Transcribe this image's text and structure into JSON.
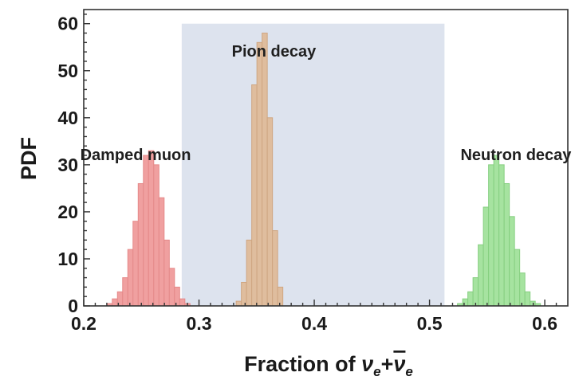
{
  "chart_data": {
    "type": "bar",
    "xlabel": "Fraction of νe+ν̄e",
    "xlabel_parts": {
      "lead": "Fraction of ",
      "nu1": "ν",
      "sub1": "e",
      "plus": "+",
      "nu2": "ν",
      "sub2": "e"
    },
    "ylabel": "PDF",
    "xlim": [
      0.2,
      0.62
    ],
    "ylim": [
      0,
      63
    ],
    "xticks": [
      0.2,
      0.3,
      0.4,
      0.5,
      0.6
    ],
    "xtick_labels": [
      "0.2",
      "0.3",
      "0.4",
      "0.5",
      "0.6"
    ],
    "yticks": [
      0,
      10,
      20,
      30,
      40,
      50,
      60
    ],
    "ytick_labels": [
      "0",
      "10",
      "20",
      "30",
      "40",
      "50",
      "60"
    ],
    "grid": false,
    "bin_width": 0.0045,
    "shaded_region": {
      "x": [
        0.285,
        0.513
      ],
      "y": [
        0,
        60
      ],
      "color": "#dde3ee"
    },
    "annotations": [
      {
        "text": "Damped muon",
        "x": 0.245,
        "y": 31
      },
      {
        "text": "Pion decay",
        "x": 0.365,
        "y": 53
      },
      {
        "text": "Neutron decay",
        "x": 0.575,
        "y": 31
      }
    ],
    "series": [
      {
        "name": "Damped muon",
        "color": "#f0a0a0",
        "edge": "#e58a8a",
        "x": [
          0.2225,
          0.227,
          0.2315,
          0.236,
          0.2405,
          0.245,
          0.2495,
          0.254,
          0.2585,
          0.263,
          0.2675,
          0.272,
          0.2765,
          0.281,
          0.2855,
          0.29
        ],
        "values": [
          0.5,
          1.5,
          3,
          6,
          12,
          18,
          26,
          32,
          33,
          30,
          23,
          14,
          8,
          4,
          1.5,
          0.5
        ]
      },
      {
        "name": "Pion decay",
        "color": "#dfbd9e",
        "edge": "#cfa682",
        "x": [
          0.3345,
          0.339,
          0.3435,
          0.348,
          0.3525,
          0.357,
          0.3615,
          0.366,
          0.3705
        ],
        "values": [
          1,
          5,
          14,
          47,
          56,
          58,
          40,
          16,
          4
        ]
      },
      {
        "name": "Neutron decay",
        "color": "#a6e3a0",
        "edge": "#86cf80",
        "x": [
          0.5265,
          0.531,
          0.5355,
          0.54,
          0.5445,
          0.549,
          0.5535,
          0.558,
          0.5625,
          0.567,
          0.5715,
          0.576,
          0.5805,
          0.585,
          0.5895,
          0.594
        ],
        "values": [
          0.5,
          1.5,
          3,
          6,
          13,
          21,
          30,
          32,
          30,
          26,
          19,
          12,
          7,
          3,
          1,
          0.5
        ]
      }
    ]
  }
}
